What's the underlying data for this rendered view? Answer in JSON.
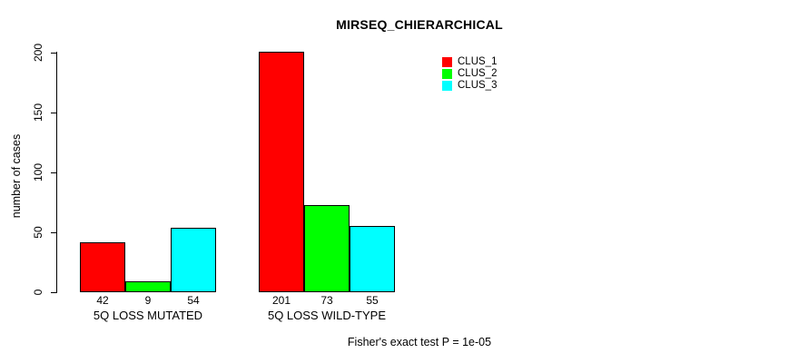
{
  "chart_data": {
    "type": "bar",
    "title": "MIRSEQ_CHIERARCHICAL",
    "xlabel": "",
    "ylabel": "number of cases",
    "ylim": [
      0,
      200
    ],
    "yticks": [
      0,
      50,
      100,
      150,
      200
    ],
    "grid": false,
    "legend_position": "top-right",
    "categories": [
      "5Q LOSS MUTATED",
      "5Q LOSS WILD-TYPE"
    ],
    "series": [
      {
        "name": "CLUS_1",
        "color": "#ff0000",
        "values": [
          42,
          201
        ]
      },
      {
        "name": "CLUS_2",
        "color": "#00ff00",
        "values": [
          9,
          73
        ]
      },
      {
        "name": "CLUS_3",
        "color": "#00ffff",
        "values": [
          54,
          55
        ]
      }
    ],
    "annotation": "Fisher's exact test P = 1e-05"
  }
}
